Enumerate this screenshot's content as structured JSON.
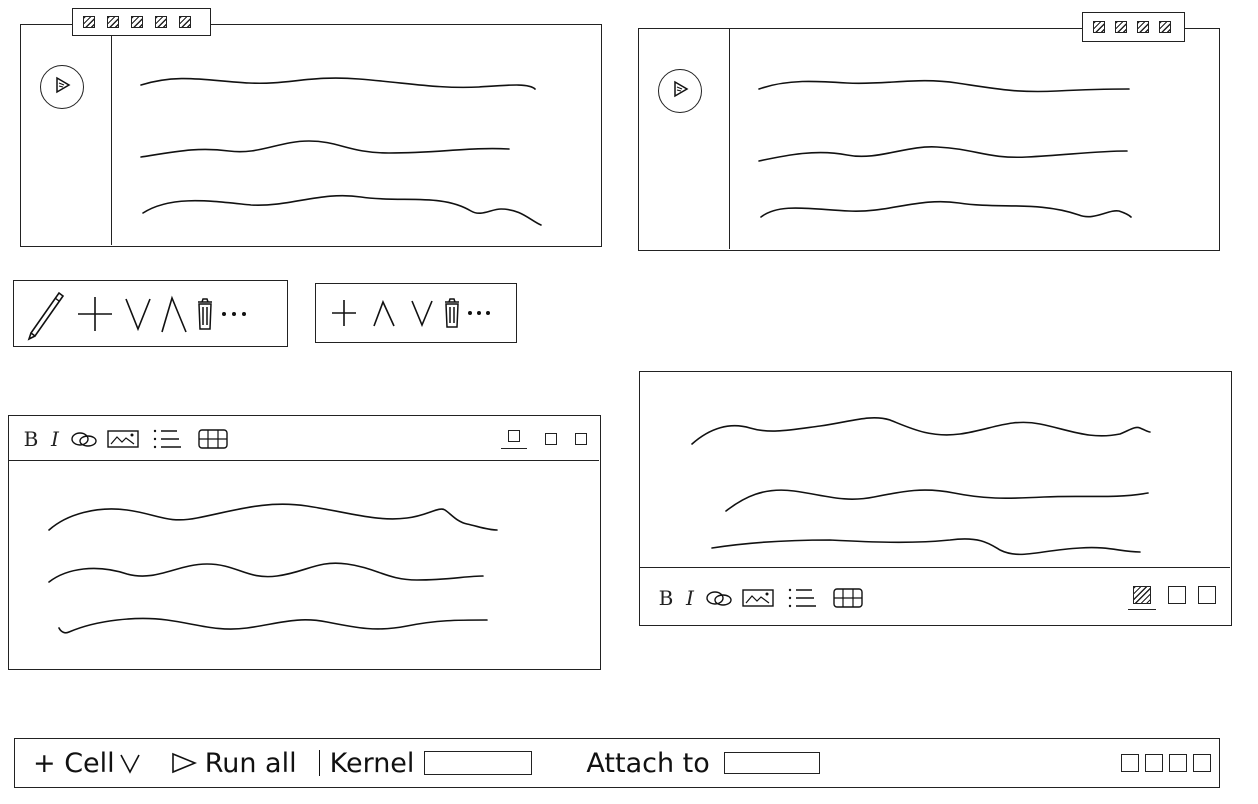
{
  "cells": {
    "code_cell_left": {
      "run_label": "Run cell",
      "toolbar_buttons": 5
    },
    "code_cell_right": {
      "run_label": "Run cell",
      "toolbar_buttons": 4
    }
  },
  "icons": {
    "run": "play-triangle-icon",
    "edit": "pencil-icon",
    "add": "plus-icon",
    "move_down": "chevron-down-icon",
    "move_up": "chevron-up-icon",
    "delete": "trash-icon",
    "more": "ellipsis-icon",
    "bold": "bold-icon",
    "italic": "italic-icon",
    "link": "link-icon",
    "image": "image-icon",
    "list": "list-icon",
    "table": "table-icon"
  },
  "format_bar": {
    "bold": "B",
    "italic": "I"
  },
  "notebook_toolbar": {
    "add_cell_label": "+ Cell",
    "run_all_label": "Run all",
    "kernel_label": "Kernel",
    "kernel_value": "",
    "attach_to_label": "Attach to",
    "attach_to_value": ""
  },
  "colors": {
    "ink": "#111111",
    "background": "#ffffff"
  }
}
